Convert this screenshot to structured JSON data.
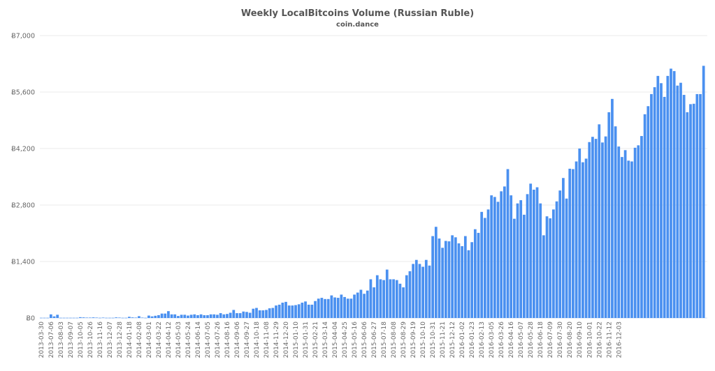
{
  "chart_data": {
    "type": "bar",
    "title": "Weekly LocalBitcoins Volume (Russian Ruble)",
    "subtitle": "coin.dance",
    "xlabel": "",
    "ylabel": "",
    "ylim": [
      0,
      7000
    ],
    "yticks": [
      "Ƀ0",
      "Ƀ1,400",
      "Ƀ2,800",
      "Ƀ4,200",
      "Ƀ5,600",
      "Ƀ7,000"
    ],
    "ytick_values": [
      0,
      1400,
      2800,
      4200,
      5600,
      7000
    ],
    "grid": true,
    "legend": "none",
    "bar_color": "#4a90f0",
    "x_tick_labels": [
      "2013-03-30",
      "2013-07-06",
      "2013-08-03",
      "2013-09-07",
      "2013-10-05",
      "2013-10-26",
      "2013-11-16",
      "2013-12-07",
      "2013-12-28",
      "2014-01-18",
      "2014-02-08",
      "2014-03-01",
      "2014-03-22",
      "2014-04-12",
      "2014-05-03",
      "2014-05-24",
      "2014-06-14",
      "2014-07-05",
      "2014-07-26",
      "2014-08-16",
      "2014-09-06",
      "2014-09-27",
      "2014-10-18",
      "2014-11-08",
      "2014-11-29",
      "2014-12-20",
      "2015-01-10",
      "2015-01-31",
      "2015-02-21",
      "2015-03-14",
      "2015-04-04",
      "2015-04-25",
      "2015-05-16",
      "2015-06-06",
      "2015-06-27",
      "2015-07-18",
      "2015-08-08",
      "2015-08-29",
      "2015-09-19",
      "2015-10-10",
      "2015-10-31",
      "2015-11-21",
      "2015-12-12",
      "2016-01-02",
      "2016-01-23",
      "2016-02-13",
      "2016-03-05",
      "2016-03-26",
      "2016-04-16",
      "2016-05-07",
      "2016-05-28",
      "2016-06-18",
      "2016-07-09",
      "2016-07-30",
      "2016-08-20",
      "2016-09-10",
      "2016-10-01",
      "2016-10-22",
      "2016-11-12",
      "2016-12-03"
    ],
    "label_every": 3,
    "values": [
      5,
      5,
      5,
      90,
      40,
      80,
      5,
      5,
      5,
      5,
      5,
      5,
      20,
      15,
      10,
      10,
      15,
      10,
      5,
      10,
      5,
      5,
      5,
      15,
      10,
      5,
      5,
      30,
      15,
      10,
      45,
      10,
      5,
      60,
      40,
      55,
      70,
      110,
      110,
      170,
      90,
      90,
      50,
      80,
      80,
      60,
      80,
      90,
      70,
      90,
      70,
      70,
      90,
      90,
      80,
      120,
      90,
      100,
      130,
      200,
      120,
      120,
      160,
      150,
      130,
      230,
      250,
      190,
      190,
      200,
      240,
      250,
      310,
      330,
      380,
      400,
      310,
      310,
      320,
      340,
      380,
      410,
      330,
      330,
      420,
      480,
      500,
      470,
      470,
      560,
      510,
      500,
      580,
      520,
      480,
      480,
      580,
      630,
      700,
      600,
      680,
      960,
      760,
      1060,
      960,
      940,
      1200,
      960,
      960,
      940,
      850,
      760,
      1060,
      1160,
      1340,
      1440,
      1340,
      1270,
      1440,
      1300,
      2030,
      2260,
      1970,
      1740,
      1910,
      1900,
      2050,
      2000,
      1850,
      1780,
      2030,
      1680,
      1880,
      2200,
      2110,
      2630,
      2480,
      2690,
      3040,
      3000,
      2880,
      3140,
      3260,
      3690,
      3040,
      2460,
      2840,
      2920,
      2560,
      3070,
      3330,
      3180,
      3240,
      2840,
      2050,
      2520,
      2470,
      2690,
      2890,
      3160,
      3470,
      2960,
      3700,
      3690,
      3880,
      4200,
      3860,
      3950,
      4360,
      4490,
      4440,
      4800,
      4350,
      4500,
      5100,
      5430,
      4750,
      4250,
      3990,
      4160,
      3900,
      3880,
      4220,
      4280,
      4510,
      5050,
      5250,
      5550,
      5720,
      6000,
      5820,
      5480,
      6000,
      6180,
      6120,
      5760,
      5830,
      5530,
      5100,
      5300,
      5310,
      5550,
      5550,
      6250
    ]
  }
}
